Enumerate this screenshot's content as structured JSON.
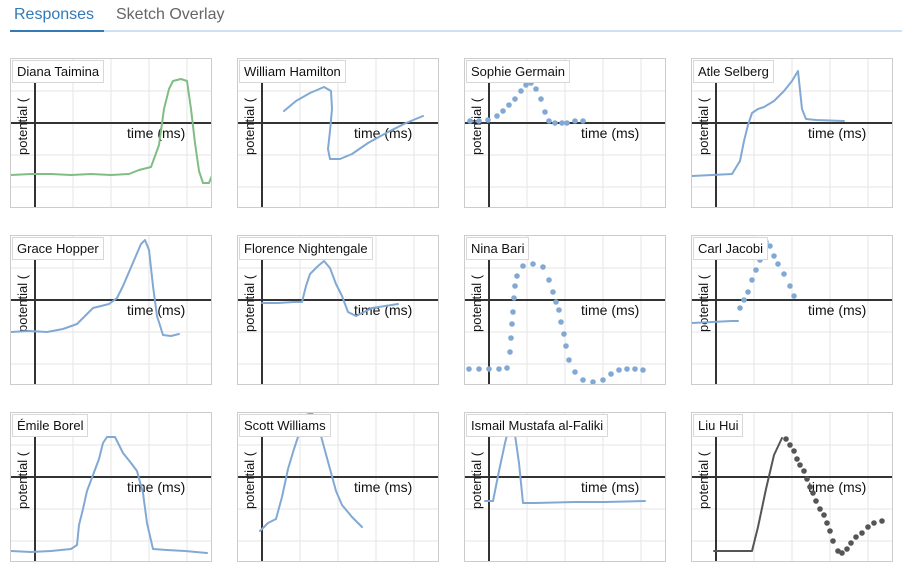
{
  "tabs": [
    {
      "label": "Responses",
      "active": true
    },
    {
      "label": "Sketch Overlay",
      "active": false
    }
  ],
  "axis": {
    "ylabel": "potential (",
    "xlabel": "time (ms)"
  },
  "colors": {
    "blue": "#82a9d4",
    "green": "#80bd84",
    "dark": "#555555",
    "axis": "#333333",
    "grid": "#e6e6e6"
  },
  "panels": [
    {
      "name": "Diana Taimina",
      "style": "line",
      "color": "green"
    },
    {
      "name": "William Hamilton",
      "style": "line",
      "color": "blue"
    },
    {
      "name": "Sophie Germain",
      "style": "dots",
      "color": "blue"
    },
    {
      "name": "Atle Selberg",
      "style": "line",
      "color": "blue"
    },
    {
      "name": "Grace Hopper",
      "style": "line",
      "color": "blue"
    },
    {
      "name": "Florence Nightengale",
      "style": "line",
      "color": "blue"
    },
    {
      "name": "Nina Bari",
      "style": "dots",
      "color": "blue"
    },
    {
      "name": "Carl Jacobi",
      "style": "mixed",
      "color": "blue"
    },
    {
      "name": "Émile Borel",
      "style": "line",
      "color": "blue"
    },
    {
      "name": "Scott Williams",
      "style": "line",
      "color": "blue"
    },
    {
      "name": "Ismail Mustafa al-Faliki",
      "style": "line",
      "color": "blue"
    },
    {
      "name": "Liu Hui",
      "style": "mixed",
      "color": "dark"
    }
  ]
}
